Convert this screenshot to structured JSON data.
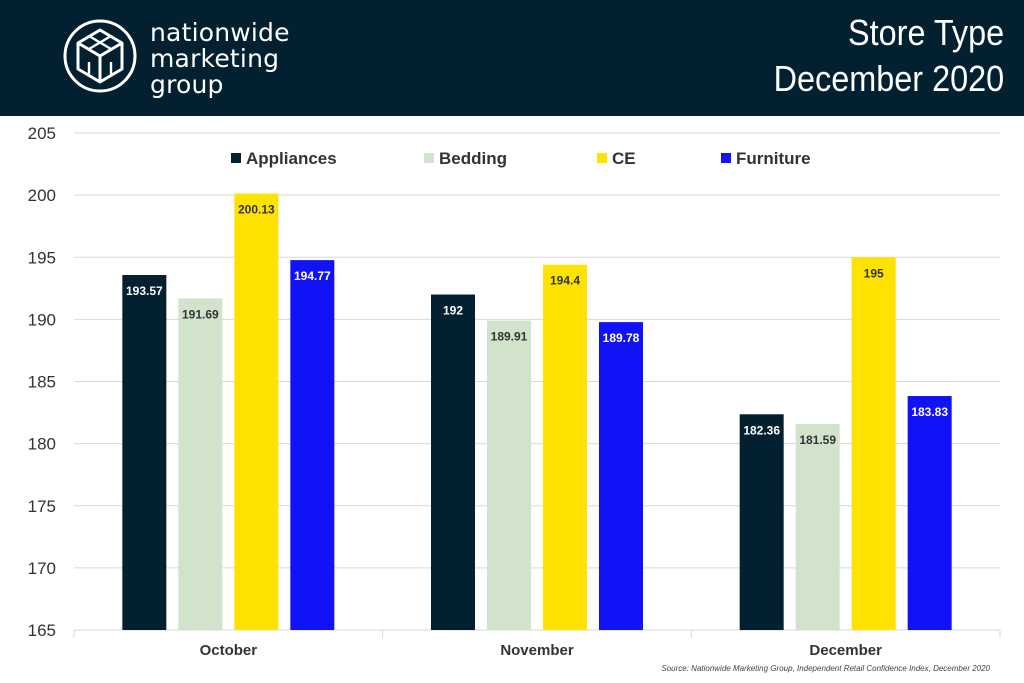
{
  "header": {
    "brand_lines": [
      "nationwide",
      "marketing",
      "group"
    ],
    "title_lines": [
      "Store Type",
      "December 2020"
    ],
    "bg_color": "#02202f"
  },
  "chart_data": {
    "type": "bar",
    "categories": [
      "October",
      "November",
      "December"
    ],
    "series": [
      {
        "name": "Appliances",
        "color": "#02202f",
        "label_color": "#ffffff",
        "values": [
          193.57,
          192,
          182.36
        ]
      },
      {
        "name": "Bedding",
        "color": "#d2e3cb",
        "label_color": "#333333",
        "values": [
          191.69,
          189.91,
          181.59
        ]
      },
      {
        "name": "CE",
        "color": "#ffe200",
        "label_color": "#333333",
        "values": [
          200.13,
          194.4,
          195
        ]
      },
      {
        "name": "Furniture",
        "color": "#1212f7",
        "label_color": "#ffffff",
        "values": [
          194.77,
          189.78,
          183.83
        ]
      }
    ],
    "value_labels": [
      [
        "193.57",
        "192",
        "182.36"
      ],
      [
        "191.69",
        "189.91",
        "181.59"
      ],
      [
        "200.13",
        "194.4",
        "195"
      ],
      [
        "194.77",
        "189.78",
        "183.83"
      ]
    ],
    "ylim": [
      165,
      205
    ],
    "yticks": [
      205,
      200,
      195,
      190,
      185,
      180,
      175,
      170,
      165
    ],
    "ytick_labels": [
      "205",
      "200",
      "195",
      "190",
      "185",
      "180",
      "175",
      "170",
      "165"
    ],
    "grid": true,
    "legend_position": "top-center",
    "source": "Source: Nationwide Marketing Group, Independent Retail Confidence Index, December 2020"
  }
}
